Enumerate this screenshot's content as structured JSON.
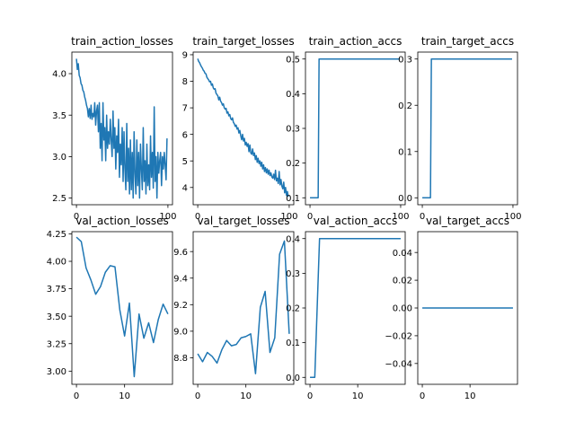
{
  "figure": {
    "background": "#ffffff",
    "line_color": "#1f77b4"
  },
  "chart_data": [
    {
      "type": "line",
      "title": "train_action_losses",
      "xlim": [
        -5,
        105
      ],
      "ylim": [
        2.42,
        4.26
      ],
      "xticks": [
        0,
        100
      ],
      "xtick_labels": [
        "0",
        "100"
      ],
      "yticks": [
        2.5,
        3.0,
        3.5,
        4.0
      ],
      "ytick_labels": [
        "2.5",
        "3.0",
        "3.5",
        "4.0"
      ],
      "series": [
        {
          "x": [
            0,
            1,
            2,
            3,
            4,
            5,
            6,
            7,
            8,
            9,
            10,
            11,
            12,
            13,
            14,
            15,
            16,
            17,
            18,
            19,
            20,
            21,
            22,
            23,
            24,
            25,
            26,
            27,
            28,
            29,
            30,
            31,
            32,
            33,
            34,
            35,
            36,
            37,
            38,
            39,
            40,
            41,
            42,
            43,
            44,
            45,
            46,
            47,
            48,
            49,
            50,
            51,
            52,
            53,
            54,
            55,
            56,
            57,
            58,
            59,
            60,
            61,
            62,
            63,
            64,
            65,
            66,
            67,
            68,
            69,
            70,
            71,
            72,
            73,
            74,
            75,
            76,
            77,
            78,
            79,
            80,
            81,
            82,
            83,
            84,
            85,
            86,
            87,
            88,
            89,
            90,
            91,
            92,
            93,
            94,
            95,
            96,
            97,
            98,
            99
          ],
          "y": [
            4.18,
            4.05,
            4.12,
            3.98,
            3.95,
            3.88,
            3.86,
            3.8,
            3.78,
            3.72,
            3.68,
            3.62,
            3.58,
            3.48,
            3.58,
            3.46,
            3.62,
            3.45,
            3.52,
            3.48,
            3.65,
            3.38,
            3.55,
            3.62,
            3.3,
            3.65,
            3.1,
            3.4,
            2.95,
            3.65,
            3.2,
            3.35,
            2.95,
            3.5,
            3.1,
            3.3,
            3.15,
            3.45,
            3.2,
            3.0,
            3.55,
            3.1,
            3.35,
            2.85,
            3.25,
            3.05,
            3.45,
            2.75,
            3.15,
            2.9,
            3.35,
            2.7,
            3.3,
            2.85,
            2.6,
            3.4,
            2.7,
            3.1,
            2.55,
            3.2,
            2.6,
            3.05,
            2.5,
            3.3,
            2.8,
            2.55,
            3.2,
            2.65,
            3.05,
            2.5,
            3.15,
            2.85,
            2.6,
            3.35,
            2.7,
            2.95,
            2.55,
            3.15,
            2.65,
            2.9,
            2.6,
            3.25,
            2.75,
            3.05,
            2.62,
            3.6,
            2.7,
            3.0,
            2.5,
            3.05,
            2.8,
            2.95,
            3.05,
            2.65,
            3.0,
            2.85,
            3.05,
            2.9,
            2.72,
            3.22
          ]
        }
      ]
    },
    {
      "type": "line",
      "title": "train_target_losses",
      "xlim": [
        -5,
        105
      ],
      "ylim": [
        3.35,
        9.1
      ],
      "xticks": [
        0,
        100
      ],
      "xtick_labels": [
        "0",
        "100"
      ],
      "yticks": [
        4,
        5,
        6,
        7,
        8,
        9
      ],
      "ytick_labels": [
        "4",
        "5",
        "6",
        "7",
        "8",
        "9"
      ],
      "series": [
        {
          "x": [
            0,
            1,
            2,
            3,
            4,
            5,
            6,
            7,
            8,
            9,
            10,
            11,
            12,
            13,
            14,
            15,
            16,
            17,
            18,
            19,
            20,
            21,
            22,
            23,
            24,
            25,
            26,
            27,
            28,
            29,
            30,
            31,
            32,
            33,
            34,
            35,
            36,
            37,
            38,
            39,
            40,
            41,
            42,
            43,
            44,
            45,
            46,
            47,
            48,
            49,
            50,
            51,
            52,
            53,
            54,
            55,
            56,
            57,
            58,
            59,
            60,
            61,
            62,
            63,
            64,
            65,
            66,
            67,
            68,
            69,
            70,
            71,
            72,
            73,
            74,
            75,
            76,
            77,
            78,
            79,
            80,
            81,
            82,
            83,
            84,
            85,
            86,
            87,
            88,
            89,
            90,
            91,
            92,
            93,
            94,
            95,
            96,
            97,
            98,
            99
          ],
          "y": [
            8.85,
            8.75,
            8.7,
            8.62,
            8.55,
            8.5,
            8.42,
            8.38,
            8.3,
            8.28,
            8.15,
            8.1,
            8.05,
            7.98,
            8.0,
            7.85,
            7.9,
            7.75,
            7.7,
            7.72,
            7.55,
            7.5,
            7.45,
            7.3,
            7.4,
            7.25,
            7.2,
            7.1,
            7.15,
            7.0,
            6.95,
            6.98,
            6.8,
            6.85,
            6.7,
            6.75,
            6.6,
            6.55,
            6.62,
            6.45,
            6.4,
            6.3,
            6.35,
            6.2,
            6.25,
            6.05,
            6.15,
            5.95,
            5.8,
            6.0,
            5.75,
            5.85,
            5.6,
            5.7,
            5.55,
            5.65,
            5.35,
            5.6,
            5.3,
            5.25,
            5.45,
            5.2,
            5.3,
            5.05,
            5.2,
            4.95,
            5.1,
            4.9,
            5.0,
            4.8,
            4.95,
            4.7,
            4.85,
            4.6,
            4.75,
            4.55,
            4.7,
            4.5,
            4.65,
            4.45,
            4.55,
            4.4,
            4.35,
            4.5,
            4.3,
            4.65,
            4.25,
            4.35,
            4.15,
            4.6,
            4.1,
            4.3,
            4.05,
            3.95,
            4.2,
            3.8,
            4.0,
            3.7,
            3.85,
            3.65
          ]
        }
      ]
    },
    {
      "type": "line",
      "title": "train_action_accs",
      "xlim": [
        -5,
        105
      ],
      "ylim": [
        0.08,
        0.52
      ],
      "xticks": [
        0,
        100
      ],
      "xtick_labels": [
        "0",
        "100"
      ],
      "yticks": [
        0.1,
        0.2,
        0.3,
        0.4,
        0.5
      ],
      "ytick_labels": [
        "0.1",
        "0.2",
        "0.3",
        "0.4",
        "0.5"
      ],
      "series": [
        {
          "x": [
            0,
            9,
            10,
            99
          ],
          "y": [
            0.1,
            0.1,
            0.5,
            0.5
          ]
        }
      ]
    },
    {
      "type": "line",
      "title": "train_target_accs",
      "xlim": [
        -5,
        105
      ],
      "ylim": [
        -0.015,
        0.315
      ],
      "xticks": [
        0,
        100
      ],
      "xtick_labels": [
        "0",
        "100"
      ],
      "yticks": [
        0.0,
        0.1,
        0.2,
        0.3
      ],
      "ytick_labels": [
        "0.0",
        "0.1",
        "0.2",
        "0.3"
      ],
      "series": [
        {
          "x": [
            0,
            9,
            10,
            99
          ],
          "y": [
            0.0,
            0.0,
            0.3,
            0.3
          ]
        }
      ]
    },
    {
      "type": "line",
      "title": "val_action_losses",
      "xlim": [
        -0.95,
        19.95
      ],
      "ylim": [
        2.88,
        4.27
      ],
      "xticks": [
        0,
        10
      ],
      "xtick_labels": [
        "0",
        "10"
      ],
      "yticks": [
        3.0,
        3.25,
        3.5,
        3.75,
        4.0,
        4.25
      ],
      "ytick_labels": [
        "3.00",
        "3.25",
        "3.50",
        "3.75",
        "4.00",
        "4.25"
      ],
      "series": [
        {
          "x": [
            0,
            1,
            2,
            3,
            4,
            5,
            6,
            7,
            8,
            9,
            10,
            11,
            12,
            13,
            14,
            15,
            16,
            17,
            18,
            19
          ],
          "y": [
            4.22,
            4.18,
            3.94,
            3.83,
            3.7,
            3.77,
            3.9,
            3.96,
            3.95,
            3.56,
            3.32,
            3.62,
            2.95,
            3.52,
            3.3,
            3.44,
            3.26,
            3.47,
            3.61,
            3.52
          ]
        }
      ]
    },
    {
      "type": "line",
      "title": "val_target_losses",
      "xlim": [
        -0.95,
        19.95
      ],
      "ylim": [
        8.6,
        9.75
      ],
      "xticks": [
        0,
        10
      ],
      "xtick_labels": [
        "0",
        "10"
      ],
      "yticks": [
        8.8,
        9.0,
        9.2,
        9.4,
        9.6
      ],
      "ytick_labels": [
        "8.8",
        "9.0",
        "9.2",
        "9.4",
        "9.6"
      ],
      "series": [
        {
          "x": [
            0,
            1,
            2,
            3,
            4,
            5,
            6,
            7,
            8,
            9,
            10,
            11,
            12,
            13,
            14,
            15,
            16,
            17,
            18,
            19
          ],
          "y": [
            8.83,
            8.77,
            8.84,
            8.81,
            8.76,
            8.86,
            8.93,
            8.89,
            8.9,
            8.95,
            8.96,
            8.98,
            8.68,
            9.18,
            9.3,
            8.84,
            8.95,
            9.58,
            9.68,
            8.98
          ]
        }
      ]
    },
    {
      "type": "line",
      "title": "val_action_accs",
      "xlim": [
        -0.95,
        19.95
      ],
      "ylim": [
        -0.02,
        0.42
      ],
      "xticks": [
        0,
        10
      ],
      "xtick_labels": [
        "0",
        "10"
      ],
      "yticks": [
        0.0,
        0.1,
        0.2,
        0.3,
        0.4
      ],
      "ytick_labels": [
        "0.0",
        "0.1",
        "0.2",
        "0.3",
        "0.4"
      ],
      "series": [
        {
          "x": [
            0,
            1,
            2,
            19
          ],
          "y": [
            0.0,
            0.0,
            0.4,
            0.4
          ]
        }
      ]
    },
    {
      "type": "line",
      "title": "val_target_accs",
      "xlim": [
        -0.95,
        19.95
      ],
      "ylim": [
        -0.055,
        0.055
      ],
      "xticks": [
        0,
        10
      ],
      "xtick_labels": [
        "0",
        "10"
      ],
      "yticks": [
        -0.04,
        -0.02,
        0.0,
        0.02,
        0.04
      ],
      "ytick_labels": [
        "−0.04",
        "−0.02",
        "0.00",
        "0.02",
        "0.04"
      ],
      "series": [
        {
          "x": [
            0,
            19
          ],
          "y": [
            0.0,
            0.0
          ]
        }
      ]
    }
  ]
}
